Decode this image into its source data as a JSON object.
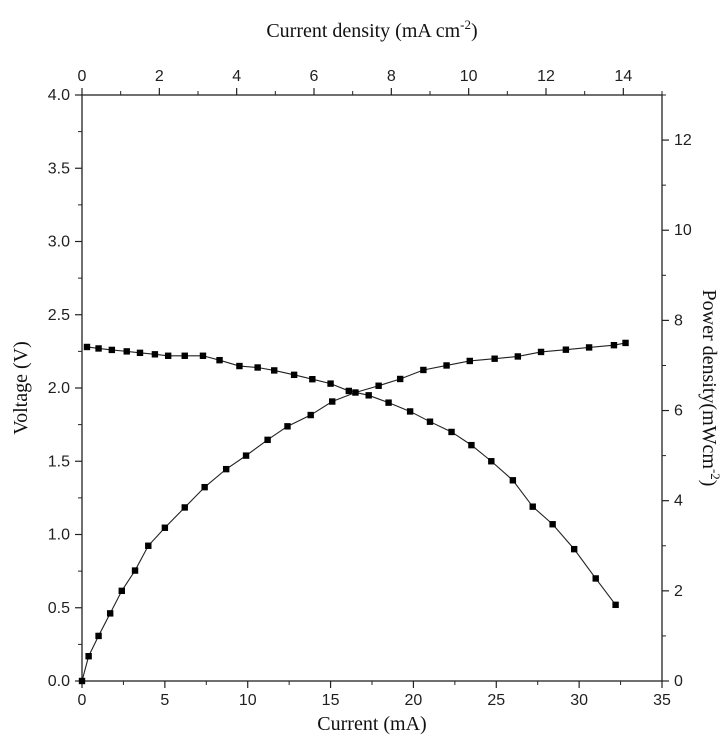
{
  "chart_data": {
    "type": "line",
    "xlabel_bottom": "Current (mA)",
    "xlabel_top_prefix": "Current density (mA cm",
    "xlabel_top_sup": "-2",
    "xlabel_top_suffix": ")",
    "ylabel_left": "Voltage (V)",
    "ylabel_right_prefix": "Power density(mWcm",
    "ylabel_right_sup": "-2",
    "ylabel_right_suffix": ")",
    "x_bottom": {
      "range": [
        0,
        35
      ],
      "ticks": [
        0,
        5,
        10,
        15,
        20,
        25,
        30,
        35
      ],
      "tick_labels": [
        "0",
        "5",
        "10",
        "15",
        "20",
        "25",
        "30",
        "35"
      ]
    },
    "x_top": {
      "range": [
        0,
        15
      ],
      "ticks": [
        0,
        2,
        4,
        6,
        8,
        10,
        12,
        14
      ],
      "tick_labels": [
        "0",
        "2",
        "4",
        "6",
        "8",
        "10",
        "12",
        "14"
      ]
    },
    "y_left": {
      "range": [
        0,
        4
      ],
      "ticks": [
        0,
        0.5,
        1,
        1.5,
        2,
        2.5,
        3,
        3.5,
        4
      ],
      "tick_labels": [
        "0.0",
        "0.5",
        "1.0",
        "1.5",
        "2.0",
        "2.5",
        "3.0",
        "3.5",
        "4.0"
      ]
    },
    "y_right": {
      "range": [
        0,
        13
      ],
      "ticks": [
        0,
        2,
        4,
        6,
        8,
        10,
        12
      ],
      "tick_labels": [
        "0",
        "2",
        "4",
        "6",
        "8",
        "10",
        "12"
      ]
    },
    "series": [
      {
        "axis": "left",
        "x": [
          0.3,
          1.0,
          1.8,
          2.7,
          3.5,
          4.4,
          5.2,
          6.2,
          7.3,
          8.3,
          9.5,
          10.6,
          11.6,
          12.8,
          13.9,
          15.0,
          16.1,
          17.3,
          18.5,
          19.8,
          21.0,
          22.3,
          23.5,
          24.7,
          26.0,
          27.2,
          28.4,
          29.7,
          31.0,
          32.2
        ],
        "y": [
          2.28,
          2.27,
          2.26,
          2.25,
          2.24,
          2.23,
          2.22,
          2.22,
          2.22,
          2.19,
          2.15,
          2.14,
          2.12,
          2.09,
          2.06,
          2.03,
          1.98,
          1.95,
          1.9,
          1.84,
          1.77,
          1.7,
          1.61,
          1.5,
          1.37,
          1.19,
          1.07,
          0.9,
          0.7,
          0.52
        ]
      },
      {
        "axis": "right",
        "x": [
          0.0,
          0.4,
          1.0,
          1.7,
          2.4,
          3.2,
          4.0,
          5.0,
          6.2,
          7.4,
          8.7,
          9.9,
          11.2,
          12.4,
          13.8,
          15.1,
          16.5,
          17.9,
          19.2,
          20.6,
          22.0,
          23.4,
          24.9,
          26.3,
          27.7,
          29.2,
          30.6,
          32.1,
          32.8
        ],
        "y": [
          0.0,
          0.55,
          1.0,
          1.5,
          2.0,
          2.45,
          3.0,
          3.4,
          3.85,
          4.3,
          4.7,
          5.0,
          5.35,
          5.65,
          5.9,
          6.2,
          6.4,
          6.55,
          6.7,
          6.9,
          7.0,
          7.1,
          7.15,
          7.2,
          7.3,
          7.35,
          7.4,
          7.45,
          7.5
        ]
      }
    ]
  }
}
